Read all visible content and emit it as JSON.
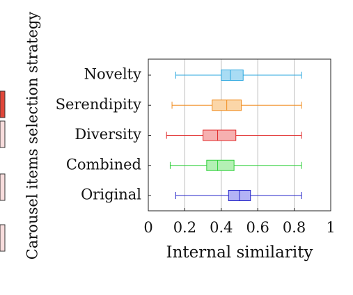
{
  "chart_data": {
    "type": "boxplot",
    "orientation": "horizontal",
    "xlabel": "Internal similarity",
    "ylabel": "Carousel items selection strategy",
    "xlim": [
      0,
      1
    ],
    "xticks": [
      0,
      0.2,
      0.4,
      0.6,
      0.8,
      1
    ],
    "xtick_labels": [
      "0",
      "0.2",
      "0.4",
      "0.6",
      "0.8",
      "1"
    ],
    "grid": true,
    "series": [
      {
        "name": "Novelty",
        "color": "#2aa7df",
        "fill": "#a9dcf4",
        "whisker_low": 0.15,
        "q1": 0.4,
        "median": 0.45,
        "q3": 0.52,
        "whisker_high": 0.84
      },
      {
        "name": "Serendipity",
        "color": "#f08c1e",
        "fill": "#fbd6a8",
        "whisker_low": 0.13,
        "q1": 0.35,
        "median": 0.43,
        "q3": 0.51,
        "whisker_high": 0.84
      },
      {
        "name": "Diversity",
        "color": "#e02727",
        "fill": "#f6b0b0",
        "whisker_low": 0.1,
        "q1": 0.3,
        "median": 0.38,
        "q3": 0.48,
        "whisker_high": 0.84
      },
      {
        "name": "Combined",
        "color": "#2fcf3a",
        "fill": "#b4f0b4",
        "whisker_low": 0.12,
        "q1": 0.32,
        "median": 0.38,
        "q3": 0.47,
        "whisker_high": 0.84
      },
      {
        "name": "Original",
        "color": "#2424c8",
        "fill": "#b3b3f6",
        "whisker_low": 0.15,
        "q1": 0.44,
        "median": 0.5,
        "q3": 0.56,
        "whisker_high": 0.84
      }
    ]
  },
  "left_panel": {
    "bar_colors": [
      "#e0473a",
      "#f7dcdc",
      "#f7dcdc",
      "#f7dcdc"
    ]
  }
}
